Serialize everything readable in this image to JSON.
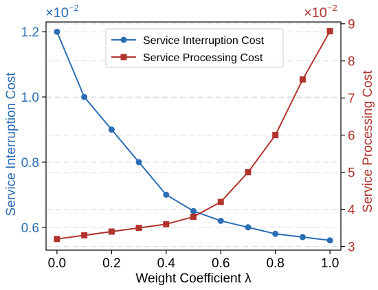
{
  "chart_data": {
    "type": "line",
    "xlabel": "Weight Coefficient λ",
    "x": [
      0.0,
      0.1,
      0.2,
      0.3,
      0.4,
      0.5,
      0.6,
      0.7,
      0.8,
      0.9,
      1.0
    ],
    "x_ticks": [
      "0.0",
      "0.2",
      "0.4",
      "0.6",
      "0.8",
      "1.0"
    ],
    "xlim": [
      -0.04,
      1.04
    ],
    "grid": "dashed horizontal",
    "legend": "top-center",
    "left_axis": {
      "label": "Service Interruption Cost",
      "multiplier_base": "×10",
      "multiplier_exp": "−2",
      "ticks": [
        "0.6",
        "0.8",
        "1.0",
        "1.2"
      ],
      "ylim": [
        0.53,
        1.23
      ],
      "color": "#2a6db5"
    },
    "right_axis": {
      "label": "Service Processing Cost",
      "multiplier_base": "×10",
      "multiplier_exp": "−2",
      "ticks": [
        "3",
        "4",
        "5",
        "6",
        "7",
        "8",
        "9"
      ],
      "ylim": [
        2.9,
        9.05
      ],
      "color": "#b0332c"
    },
    "series": [
      {
        "name": "Service Interruption Cost",
        "axis": "left",
        "color": "#2a6db5",
        "marker": "circle",
        "values": [
          1.2,
          1.0,
          0.9,
          0.8,
          0.7,
          0.65,
          0.62,
          0.6,
          0.58,
          0.57,
          0.56
        ]
      },
      {
        "name": "Service Processing Cost",
        "axis": "right",
        "color": "#b0332c",
        "marker": "square",
        "values": [
          3.2,
          3.3,
          3.4,
          3.5,
          3.6,
          3.8,
          4.2,
          5.0,
          6.0,
          7.5,
          8.8
        ]
      }
    ]
  }
}
